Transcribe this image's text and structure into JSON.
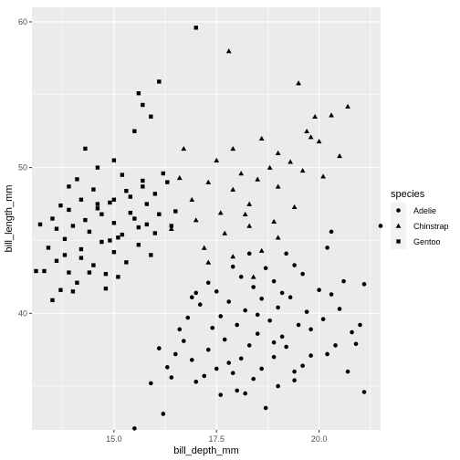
{
  "chart_data": {
    "type": "scatter",
    "xlabel": "bill_depth_mm",
    "ylabel": "bill_length_mm",
    "xlim": [
      13.0,
      21.5
    ],
    "ylim": [
      32.0,
      61.0
    ],
    "x_ticks": [
      15.0,
      17.5,
      20.0
    ],
    "x_tick_labels": [
      "15.0",
      "17.5",
      "20.0"
    ],
    "y_ticks": [
      40,
      50,
      60
    ],
    "y_tick_labels": [
      "40",
      "50",
      "60"
    ],
    "grid": true,
    "panel_background": "#ebebeb",
    "grid_color": "#ffffff",
    "point_color": "#000000",
    "legend": {
      "title": "species",
      "position": "right",
      "entries": [
        {
          "label": "Adelie",
          "shape": "circle"
        },
        {
          "label": "Chinstrap",
          "shape": "triangle"
        },
        {
          "label": "Gentoo",
          "shape": "square"
        }
      ]
    },
    "series": [
      {
        "name": "Adelie",
        "shape": "circle",
        "points": [
          [
            15.5,
            32.1
          ],
          [
            16.2,
            33.1
          ],
          [
            18.7,
            33.5
          ],
          [
            17.6,
            34.4
          ],
          [
            18.2,
            34.5
          ],
          [
            21.1,
            34.6
          ],
          [
            15.9,
            35.2
          ],
          [
            17.0,
            35.3
          ],
          [
            18.0,
            34.7
          ],
          [
            19.0,
            35.0
          ],
          [
            16.4,
            35.6
          ],
          [
            17.2,
            35.7
          ],
          [
            17.9,
            35.9
          ],
          [
            18.4,
            35.5
          ],
          [
            19.4,
            35.4
          ],
          [
            20.7,
            36.0
          ],
          [
            16.3,
            36.3
          ],
          [
            17.5,
            36.2
          ],
          [
            18.6,
            36.2
          ],
          [
            19.6,
            36.4
          ],
          [
            16.9,
            36.8
          ],
          [
            17.8,
            36.6
          ],
          [
            18.1,
            36.9
          ],
          [
            18.9,
            37.0
          ],
          [
            20.2,
            37.2
          ],
          [
            16.1,
            37.6
          ],
          [
            17.3,
            37.5
          ],
          [
            18.3,
            37.8
          ],
          [
            19.2,
            37.7
          ],
          [
            20.4,
            37.8
          ],
          [
            16.7,
            38.1
          ],
          [
            17.7,
            38.2
          ],
          [
            18.5,
            38.6
          ],
          [
            19.1,
            38.4
          ],
          [
            19.8,
            38.9
          ],
          [
            20.8,
            38.7
          ],
          [
            16.6,
            38.9
          ],
          [
            17.4,
            39.0
          ],
          [
            18.0,
            39.2
          ],
          [
            18.8,
            39.5
          ],
          [
            19.5,
            39.2
          ],
          [
            20.1,
            39.6
          ],
          [
            21.0,
            39.2
          ],
          [
            16.8,
            39.7
          ],
          [
            17.6,
            39.8
          ],
          [
            18.2,
            40.2
          ],
          [
            19.0,
            40.4
          ],
          [
            19.7,
            40.1
          ],
          [
            20.5,
            40.3
          ],
          [
            17.1,
            40.6
          ],
          [
            17.8,
            40.8
          ],
          [
            18.6,
            41.0
          ],
          [
            19.3,
            41.1
          ],
          [
            20.3,
            41.3
          ],
          [
            16.9,
            41.1
          ],
          [
            17.5,
            41.5
          ],
          [
            18.4,
            41.8
          ],
          [
            19.1,
            41.4
          ],
          [
            20.0,
            41.6
          ],
          [
            21.1,
            42.0
          ],
          [
            17.3,
            42.1
          ],
          [
            18.1,
            42.5
          ],
          [
            18.9,
            42.2
          ],
          [
            19.6,
            42.7
          ],
          [
            20.6,
            42.2
          ],
          [
            17.9,
            43.2
          ],
          [
            18.7,
            43.1
          ],
          [
            19.4,
            43.3
          ],
          [
            18.3,
            44.1
          ],
          [
            19.2,
            44.1
          ],
          [
            20.2,
            44.5
          ],
          [
            21.5,
            46.0
          ],
          [
            20.3,
            45.6
          ],
          [
            19.4,
            36.0
          ],
          [
            18.9,
            38.0
          ],
          [
            17.0,
            41.4
          ],
          [
            18.5,
            39.9
          ],
          [
            19.8,
            37.1
          ],
          [
            16.5,
            37.2
          ],
          [
            20.9,
            37.9
          ]
        ]
      },
      {
        "name": "Chinstrap",
        "shape": "triangle",
        "points": [
          [
            17.8,
            58.0
          ],
          [
            19.5,
            55.8
          ],
          [
            20.7,
            54.2
          ],
          [
            19.9,
            53.5
          ],
          [
            19.7,
            52.5
          ],
          [
            20.0,
            51.8
          ],
          [
            18.6,
            52.0
          ],
          [
            17.9,
            51.3
          ],
          [
            19.0,
            51.0
          ],
          [
            20.5,
            50.8
          ],
          [
            19.3,
            50.4
          ],
          [
            17.5,
            50.5
          ],
          [
            18.8,
            50.0
          ],
          [
            19.6,
            49.8
          ],
          [
            18.1,
            49.6
          ],
          [
            17.3,
            49.0
          ],
          [
            18.5,
            49.2
          ],
          [
            20.1,
            49.4
          ],
          [
            16.6,
            49.3
          ],
          [
            17.9,
            48.5
          ],
          [
            19.0,
            48.7
          ],
          [
            16.9,
            47.8
          ],
          [
            18.3,
            47.5
          ],
          [
            19.4,
            47.3
          ],
          [
            17.6,
            46.9
          ],
          [
            18.2,
            46.8
          ],
          [
            17.0,
            46.4
          ],
          [
            18.9,
            46.3
          ],
          [
            16.4,
            45.8
          ],
          [
            17.7,
            45.5
          ],
          [
            19.0,
            45.2
          ],
          [
            18.3,
            46.0
          ],
          [
            17.2,
            44.5
          ],
          [
            18.6,
            44.3
          ],
          [
            17.9,
            43.9
          ],
          [
            18.4,
            42.5
          ],
          [
            17.3,
            43.5
          ],
          [
            20.3,
            53.6
          ],
          [
            19.8,
            52.1
          ],
          [
            16.7,
            51.3
          ]
        ]
      },
      {
        "name": "Gentoo",
        "shape": "square",
        "points": [
          [
            17.0,
            59.6
          ],
          [
            16.1,
            55.9
          ],
          [
            15.6,
            55.1
          ],
          [
            15.7,
            54.3
          ],
          [
            15.9,
            53.5
          ],
          [
            15.5,
            52.5
          ],
          [
            14.3,
            51.3
          ],
          [
            15.0,
            50.5
          ],
          [
            14.6,
            50.0
          ],
          [
            15.2,
            49.5
          ],
          [
            14.1,
            49.2
          ],
          [
            15.7,
            49.1
          ],
          [
            16.3,
            49.0
          ],
          [
            13.9,
            48.7
          ],
          [
            14.5,
            48.5
          ],
          [
            15.3,
            48.4
          ],
          [
            16.0,
            48.2
          ],
          [
            14.2,
            47.8
          ],
          [
            14.9,
            47.6
          ],
          [
            15.8,
            47.5
          ],
          [
            13.7,
            47.4
          ],
          [
            14.6,
            47.2
          ],
          [
            15.4,
            46.9
          ],
          [
            16.1,
            46.8
          ],
          [
            13.5,
            46.5
          ],
          [
            14.3,
            46.4
          ],
          [
            15.0,
            46.2
          ],
          [
            15.8,
            46.1
          ],
          [
            16.4,
            46.0
          ],
          [
            13.6,
            45.8
          ],
          [
            14.4,
            45.6
          ],
          [
            15.2,
            45.4
          ],
          [
            16.0,
            45.5
          ],
          [
            13.8,
            45.1
          ],
          [
            14.7,
            44.9
          ],
          [
            15.6,
            44.7
          ],
          [
            13.4,
            44.5
          ],
          [
            14.2,
            44.4
          ],
          [
            15.0,
            44.2
          ],
          [
            15.9,
            44.0
          ],
          [
            13.6,
            43.6
          ],
          [
            14.5,
            43.3
          ],
          [
            15.3,
            43.5
          ],
          [
            13.9,
            42.8
          ],
          [
            14.8,
            42.7
          ],
          [
            13.3,
            42.9
          ],
          [
            14.1,
            42.1
          ],
          [
            15.1,
            42.5
          ],
          [
            13.7,
            41.6
          ],
          [
            14.0,
            41.5
          ],
          [
            14.8,
            41.7
          ],
          [
            13.1,
            42.9
          ],
          [
            13.5,
            40.9
          ],
          [
            14.6,
            47.5
          ],
          [
            15.5,
            46.5
          ],
          [
            14.0,
            46.0
          ],
          [
            15.7,
            48.7
          ],
          [
            13.2,
            46.1
          ],
          [
            16.2,
            49.6
          ],
          [
            15.1,
            45.2
          ],
          [
            14.4,
            42.8
          ],
          [
            14.9,
            45.0
          ],
          [
            15.4,
            48.0
          ],
          [
            13.8,
            44.0
          ],
          [
            16.5,
            47.0
          ],
          [
            14.7,
            46.8
          ],
          [
            13.9,
            47.1
          ],
          [
            15.6,
            45.9
          ],
          [
            14.2,
            43.8
          ],
          [
            15.0,
            47.8
          ]
        ]
      }
    ]
  }
}
